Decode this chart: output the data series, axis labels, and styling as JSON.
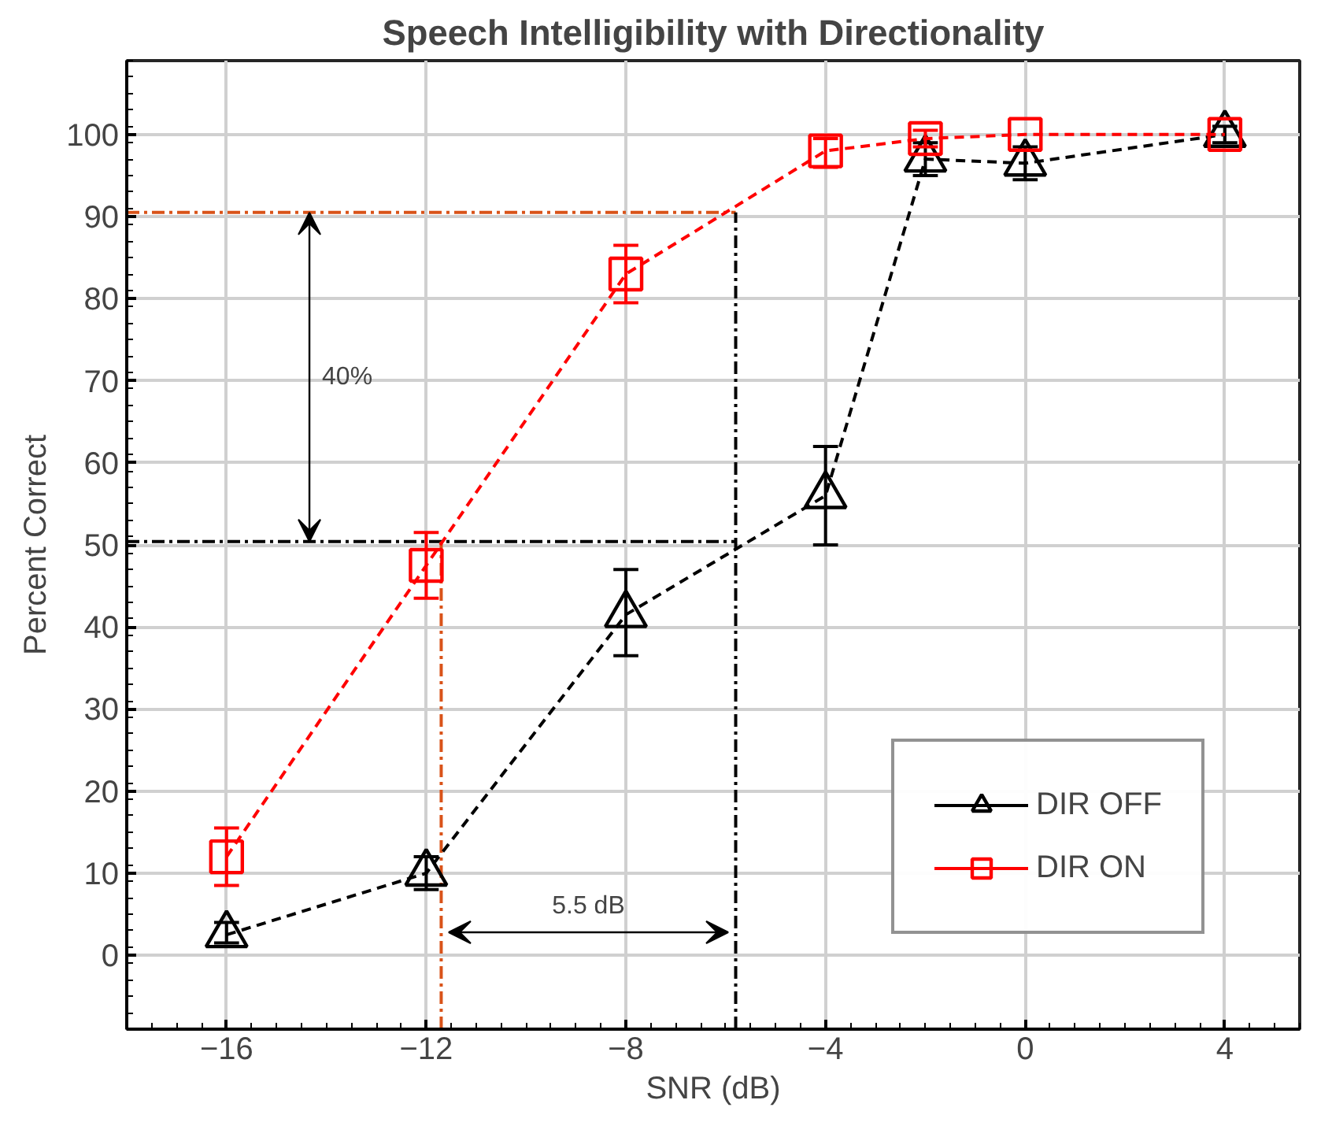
{
  "chart_data": {
    "type": "line",
    "title": "Speech Intelligibility with Directionality",
    "xlabel": "SNR (dB)",
    "ylabel": "Percent Correct",
    "x": [
      -16,
      -12,
      -8,
      -4,
      -2,
      0,
      4
    ],
    "series": [
      {
        "name": "DIR OFF",
        "color": "#000000",
        "marker": "triangle",
        "line_style": "dashed",
        "values": [
          2.5,
          10,
          41.5,
          56,
          97,
          96.5,
          100
        ],
        "errors": [
          [
            1.5,
            4
          ],
          [
            8,
            12
          ],
          [
            36.5,
            47
          ],
          [
            50,
            62
          ],
          [
            95,
            99
          ],
          [
            94.5,
            98.5
          ],
          [
            99,
            101
          ]
        ]
      },
      {
        "name": "DIR ON",
        "color": "#ff0000",
        "marker": "square",
        "line_style": "dashed",
        "values": [
          12,
          47.5,
          83,
          98,
          99.5,
          100,
          100
        ],
        "errors": [
          [
            8.5,
            15.5
          ],
          [
            43.5,
            51.5
          ],
          [
            79.5,
            86.5
          ],
          [
            96,
            99.5
          ],
          [
            98.5,
            100.5
          ],
          null,
          null
        ]
      }
    ],
    "xlim": [
      -18,
      5.5
    ],
    "ylim": [
      -9,
      109
    ],
    "xticks": [
      -16,
      -12,
      -8,
      -4,
      0,
      4
    ],
    "yticks": [
      0,
      10,
      20,
      30,
      40,
      50,
      60,
      70,
      80,
      90,
      100
    ],
    "grid": true,
    "legend": "bottom right",
    "ref_lines": [
      {
        "axis": "y",
        "value": 90.5,
        "color": "#d95319",
        "line_style": "dashdot"
      },
      {
        "axis": "y",
        "value": 50.4,
        "color": "#000000",
        "line_style": "dashdot"
      },
      {
        "axis": "x",
        "value": -5.8,
        "color": "#000000",
        "line_style": "dashdot"
      },
      {
        "axis": "x",
        "value": -11.7,
        "color": "#d95319",
        "line_style": "dashdot"
      }
    ],
    "annotations": [
      "40%",
      "5.5 dB"
    ]
  }
}
